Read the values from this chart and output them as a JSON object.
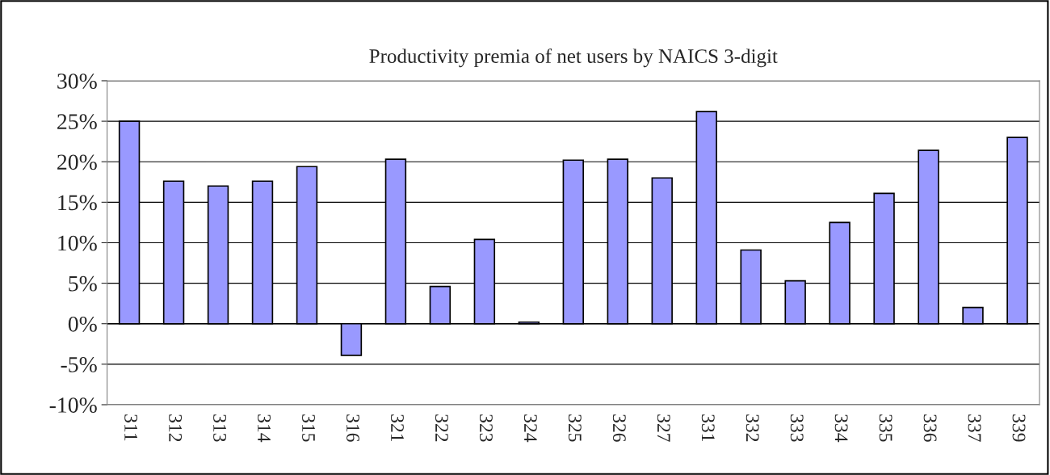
{
  "chart_data": {
    "type": "bar",
    "title": "Productivity premia of net users by NAICS 3-digit",
    "categories": [
      "311",
      "312",
      "313",
      "314",
      "315",
      "316",
      "321",
      "322",
      "323",
      "324",
      "325",
      "326",
      "327",
      "331",
      "332",
      "333",
      "334",
      "335",
      "336",
      "337",
      "339"
    ],
    "values": [
      25.0,
      17.6,
      17.0,
      17.6,
      19.4,
      -3.9,
      20.3,
      4.6,
      10.4,
      0.2,
      20.2,
      20.3,
      18.0,
      26.2,
      9.1,
      5.3,
      12.5,
      16.1,
      21.4,
      2.0,
      23.0
    ],
    "color": "#9999ff",
    "ylim": [
      -10,
      30
    ],
    "yticks": [
      {
        "value": -10,
        "label": "-10%"
      },
      {
        "value": -5,
        "label": "-5%"
      },
      {
        "value": 0,
        "label": "0%"
      },
      {
        "value": 5,
        "label": "5%"
      },
      {
        "value": 10,
        "label": "10%"
      },
      {
        "value": 15,
        "label": "15%"
      },
      {
        "value": 20,
        "label": "20%"
      },
      {
        "value": 25,
        "label": "25%"
      },
      {
        "value": 30,
        "label": "30%"
      }
    ],
    "grid": "y"
  }
}
